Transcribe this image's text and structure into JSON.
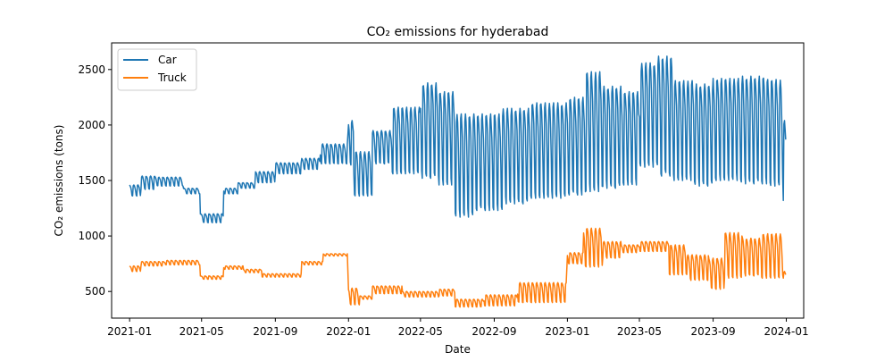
{
  "chart_data": {
    "type": "line",
    "title": "CO₂ emissions for hyderabad",
    "xlabel": "Date",
    "ylabel": "CO₂ emissions (tons)",
    "x_range": [
      "2020-12-02",
      "2024-01-30"
    ],
    "ylim": [
      260,
      2740
    ],
    "x_ticks": [
      "2021-01",
      "2021-05",
      "2021-09",
      "2022-01",
      "2022-05",
      "2022-09",
      "2023-01",
      "2023-05",
      "2023-09",
      "2024-01"
    ],
    "x_tick_dates": [
      "2021-01-01",
      "2021-05-01",
      "2021-09-01",
      "2022-01-01",
      "2022-05-01",
      "2022-09-01",
      "2023-01-01",
      "2023-05-01",
      "2023-09-01",
      "2024-01-01"
    ],
    "y_ticks": [
      500,
      1000,
      1500,
      2000,
      2500
    ],
    "y_tick_labels": [
      "500",
      "1000",
      "1500",
      "2000",
      "2500"
    ],
    "grid": false,
    "legend_position": "top-left",
    "series": [
      {
        "name": "Car",
        "color": "#1f77b4",
        "period_days": 7,
        "segments": [
          {
            "start": "2021-01-01",
            "end": "2021-01-20",
            "low": 1360,
            "high": 1460
          },
          {
            "start": "2021-01-20",
            "end": "2021-02-15",
            "low": 1420,
            "high": 1540
          },
          {
            "start": "2021-02-15",
            "end": "2021-04-01",
            "low": 1450,
            "high": 1530
          },
          {
            "start": "2021-04-01",
            "end": "2021-04-29",
            "low": 1380,
            "high": 1430
          },
          {
            "start": "2021-04-29",
            "end": "2021-06-07",
            "low": 1120,
            "high": 1200
          },
          {
            "start": "2021-06-07",
            "end": "2021-07-01",
            "low": 1380,
            "high": 1430
          },
          {
            "start": "2021-07-01",
            "end": "2021-07-30",
            "low": 1430,
            "high": 1480
          },
          {
            "start": "2021-07-30",
            "end": "2021-09-01",
            "low": 1480,
            "high": 1580
          },
          {
            "start": "2021-09-01",
            "end": "2021-10-15",
            "low": 1560,
            "high": 1660
          },
          {
            "start": "2021-10-15",
            "end": "2021-11-15",
            "low": 1600,
            "high": 1700
          },
          {
            "start": "2021-11-15",
            "end": "2021-12-31",
            "low": 1650,
            "high": 1830
          },
          {
            "start": "2022-01-01",
            "end": "2022-01-10",
            "low": 1640,
            "high": 2040
          },
          {
            "start": "2022-01-10",
            "end": "2022-02-10",
            "low": 1360,
            "high": 1760
          },
          {
            "start": "2022-02-10",
            "end": "2022-03-15",
            "low": 1650,
            "high": 1950
          },
          {
            "start": "2022-03-15",
            "end": "2022-05-01",
            "low": 1560,
            "high": 2160
          },
          {
            "start": "2022-05-01",
            "end": "2022-06-01",
            "low": 1520,
            "high": 2380
          },
          {
            "start": "2022-06-01",
            "end": "2022-06-28",
            "low": 1460,
            "high": 2300
          },
          {
            "start": "2022-06-28",
            "end": "2022-08-01",
            "low": 1170,
            "high": 2100
          },
          {
            "start": "2022-08-01",
            "end": "2022-09-15",
            "low": 1230,
            "high": 2100
          },
          {
            "start": "2022-09-15",
            "end": "2022-11-01",
            "low": 1290,
            "high": 2150
          },
          {
            "start": "2022-11-01",
            "end": "2022-12-31",
            "low": 1340,
            "high": 2200
          },
          {
            "start": "2023-01-01",
            "end": "2023-02-01",
            "low": 1370,
            "high": 2250
          },
          {
            "start": "2023-02-01",
            "end": "2023-03-01",
            "low": 1400,
            "high": 2480
          },
          {
            "start": "2023-03-01",
            "end": "2023-04-01",
            "low": 1430,
            "high": 2350
          },
          {
            "start": "2023-04-01",
            "end": "2023-05-01",
            "low": 1460,
            "high": 2300
          },
          {
            "start": "2023-05-01",
            "end": "2023-06-01",
            "low": 1620,
            "high": 2560
          },
          {
            "start": "2023-06-01",
            "end": "2023-06-25",
            "low": 1540,
            "high": 2620
          },
          {
            "start": "2023-06-25",
            "end": "2023-08-01",
            "low": 1500,
            "high": 2400
          },
          {
            "start": "2023-08-01",
            "end": "2023-09-01",
            "low": 1450,
            "high": 2370
          },
          {
            "start": "2023-09-01",
            "end": "2023-10-15",
            "low": 1500,
            "high": 2420
          },
          {
            "start": "2023-10-15",
            "end": "2023-12-01",
            "low": 1470,
            "high": 2440
          },
          {
            "start": "2023-12-01",
            "end": "2023-12-27",
            "low": 1450,
            "high": 2410
          },
          {
            "start": "2023-12-27",
            "end": "2024-01-01",
            "low": 1320,
            "high": 2040
          }
        ]
      },
      {
        "name": "Truck",
        "color": "#ff7f0e",
        "period_days": 7,
        "segments": [
          {
            "start": "2021-01-01",
            "end": "2021-01-20",
            "low": 680,
            "high": 730
          },
          {
            "start": "2021-01-20",
            "end": "2021-03-01",
            "low": 730,
            "high": 770
          },
          {
            "start": "2021-03-01",
            "end": "2021-04-29",
            "low": 740,
            "high": 780
          },
          {
            "start": "2021-04-29",
            "end": "2021-06-07",
            "low": 610,
            "high": 640
          },
          {
            "start": "2021-06-07",
            "end": "2021-07-10",
            "low": 700,
            "high": 730
          },
          {
            "start": "2021-07-10",
            "end": "2021-08-10",
            "low": 670,
            "high": 700
          },
          {
            "start": "2021-08-10",
            "end": "2021-10-15",
            "low": 630,
            "high": 660
          },
          {
            "start": "2021-10-15",
            "end": "2021-11-20",
            "low": 740,
            "high": 770
          },
          {
            "start": "2021-11-20",
            "end": "2021-12-31",
            "low": 820,
            "high": 840
          },
          {
            "start": "2022-01-01",
            "end": "2022-01-20",
            "low": 380,
            "high": 530
          },
          {
            "start": "2022-01-20",
            "end": "2022-02-10",
            "low": 430,
            "high": 460
          },
          {
            "start": "2022-02-10",
            "end": "2022-04-01",
            "low": 480,
            "high": 550
          },
          {
            "start": "2022-04-01",
            "end": "2022-06-01",
            "low": 450,
            "high": 500
          },
          {
            "start": "2022-06-01",
            "end": "2022-06-28",
            "low": 460,
            "high": 520
          },
          {
            "start": "2022-06-28",
            "end": "2022-08-15",
            "low": 360,
            "high": 430
          },
          {
            "start": "2022-08-15",
            "end": "2022-10-10",
            "low": 370,
            "high": 470
          },
          {
            "start": "2022-10-10",
            "end": "2022-12-31",
            "low": 400,
            "high": 580
          },
          {
            "start": "2023-01-01",
            "end": "2023-01-28",
            "low": 750,
            "high": 850
          },
          {
            "start": "2023-01-28",
            "end": "2023-03-01",
            "low": 720,
            "high": 1070
          },
          {
            "start": "2023-03-01",
            "end": "2023-04-01",
            "low": 800,
            "high": 950
          },
          {
            "start": "2023-04-01",
            "end": "2023-05-01",
            "low": 850,
            "high": 920
          },
          {
            "start": "2023-05-01",
            "end": "2023-06-20",
            "low": 860,
            "high": 950
          },
          {
            "start": "2023-06-20",
            "end": "2023-07-20",
            "low": 650,
            "high": 920
          },
          {
            "start": "2023-07-20",
            "end": "2023-08-25",
            "low": 600,
            "high": 830
          },
          {
            "start": "2023-08-25",
            "end": "2023-09-20",
            "low": 520,
            "high": 800
          },
          {
            "start": "2023-09-20",
            "end": "2023-10-20",
            "low": 620,
            "high": 1030
          },
          {
            "start": "2023-10-20",
            "end": "2023-11-20",
            "low": 640,
            "high": 980
          },
          {
            "start": "2023-11-20",
            "end": "2023-12-28",
            "low": 620,
            "high": 1020
          },
          {
            "start": "2023-12-28",
            "end": "2024-01-01",
            "low": 560,
            "high": 680
          }
        ]
      }
    ]
  }
}
